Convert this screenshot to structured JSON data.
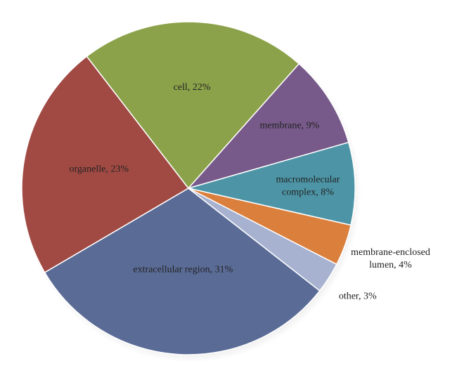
{
  "chart_data": {
    "type": "pie",
    "title": "",
    "slices": [
      {
        "label": "extracellular region, 31%",
        "value": 31,
        "color": "#5a6b96"
      },
      {
        "label": "organelle, 23%",
        "value": 23,
        "color": "#a14a44"
      },
      {
        "label": "cell, 22%",
        "value": 22,
        "color": "#8ca24a"
      },
      {
        "label": "membrane, 9%",
        "value": 9,
        "color": "#775a8a"
      },
      {
        "label": "macromolecular complex, 8%",
        "label_lines": [
          "macromolecular",
          "complex, 8%"
        ],
        "value": 8,
        "color": "#4d95a6"
      },
      {
        "label": "membrane-enclosed lumen, 4%",
        "label_lines": [
          "membrane-enclosed",
          "lumen, 4%"
        ],
        "value": 4,
        "color": "#db7f3d"
      },
      {
        "label": "other, 3%",
        "value": 3,
        "color": "#a7b2d1"
      }
    ]
  }
}
